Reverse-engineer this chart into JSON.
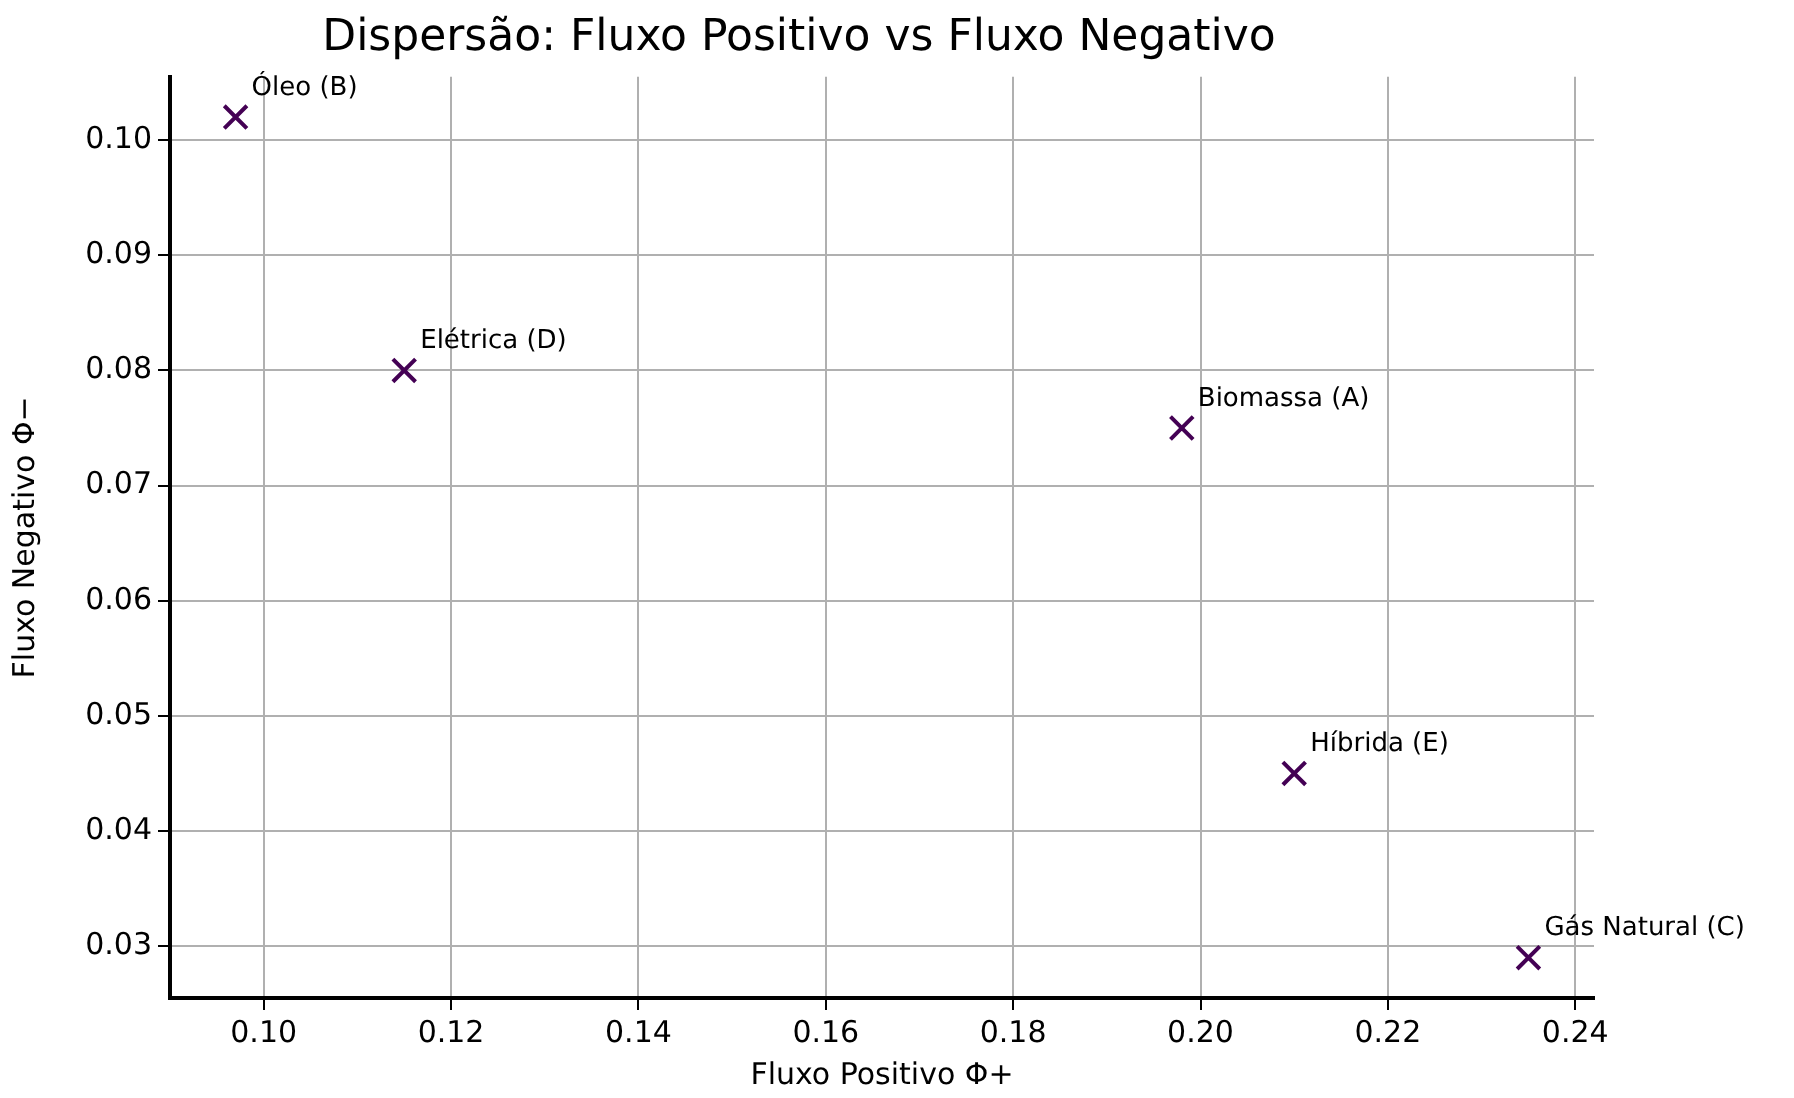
{
  "chart_data": {
    "type": "scatter",
    "title": "Dispersão: Fluxo Positivo vs Fluxo Negativo",
    "xlabel": "Fluxo Positivo Φ+",
    "ylabel": "Fluxo Negativo Φ−",
    "x": [
      0.198,
      0.097,
      0.235,
      0.115,
      0.21
    ],
    "series": [
      {
        "color": "#440154",
        "values": [
          0.075,
          0.102,
          0.029,
          0.08,
          0.045
        ]
      }
    ],
    "annotations": [
      {
        "text": "Biomassa (A)",
        "x": 0.198,
        "y": 0.075
      },
      {
        "text": "Óleo (B)",
        "x": 0.097,
        "y": 0.102
      },
      {
        "text": "Gás Natural (C)",
        "x": 0.235,
        "y": 0.029
      },
      {
        "text": "Elétrica (D)",
        "x": 0.115,
        "y": 0.08
      },
      {
        "text": "Híbrida (E)",
        "x": 0.21,
        "y": 0.045
      }
    ],
    "xlim": [
      0.09,
      0.242
    ],
    "xticks": [
      {
        "value": 0.1,
        "label": "0.10"
      },
      {
        "value": 0.12,
        "label": "0.12"
      },
      {
        "value": 0.14,
        "label": "0.14"
      },
      {
        "value": 0.16,
        "label": "0.16"
      },
      {
        "value": 0.18,
        "label": "0.18"
      },
      {
        "value": 0.2,
        "label": "0.20"
      },
      {
        "value": 0.22,
        "label": "0.22"
      },
      {
        "value": 0.24,
        "label": "0.24"
      }
    ],
    "ylim": [
      0.0255,
      0.1055
    ],
    "yticks": [
      {
        "value": 0.03,
        "label": "0.03"
      },
      {
        "value": 0.04,
        "label": "0.04"
      },
      {
        "value": 0.05,
        "label": "0.05"
      },
      {
        "value": 0.06,
        "label": "0.06"
      },
      {
        "value": 0.07,
        "label": "0.07"
      },
      {
        "value": 0.08,
        "label": "0.08"
      },
      {
        "value": 0.09,
        "label": "0.09"
      },
      {
        "value": 0.1,
        "label": "0.10"
      }
    ],
    "grid": true,
    "legend": false,
    "marker": "cross"
  }
}
